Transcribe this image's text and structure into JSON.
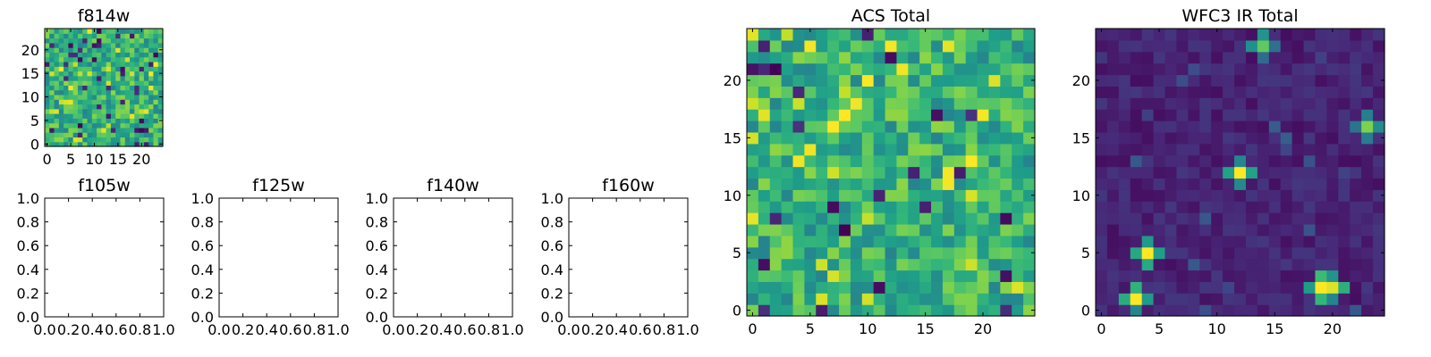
{
  "figure": {
    "panels": [
      {
        "id": "f814w",
        "title": "f814w"
      },
      {
        "id": "f105w",
        "title": "f105w"
      },
      {
        "id": "f125w",
        "title": "f125w"
      },
      {
        "id": "f140w",
        "title": "f140w"
      },
      {
        "id": "f160w",
        "title": "f160w"
      },
      {
        "id": "acs",
        "title": "ACS Total"
      },
      {
        "id": "wfc3",
        "title": "WFC3 IR Total"
      }
    ]
  },
  "chart_data": [
    {
      "type": "heatmap",
      "title": "f814w",
      "colormap": "viridis",
      "grid_size": [
        25,
        25
      ],
      "xlim": [
        -0.5,
        24.5
      ],
      "ylim": [
        -0.5,
        24.5
      ],
      "xticks": [
        0,
        5,
        10,
        15,
        20
      ],
      "yticks": [
        0,
        5,
        10,
        15,
        20
      ],
      "features": [
        {
          "x": 7,
          "y": 15,
          "value": 0.9,
          "note": "bright blob"
        }
      ]
    },
    {
      "type": "empty",
      "title": "f105w",
      "xlim": [
        0,
        1
      ],
      "ylim": [
        0,
        1
      ],
      "xticks": [
        "0.0",
        "0.2",
        "0.4",
        "0.6",
        "0.8",
        "1.0"
      ],
      "yticks": [
        "0.0",
        "0.2",
        "0.4",
        "0.6",
        "0.8",
        "1.0"
      ]
    },
    {
      "type": "empty",
      "title": "f125w",
      "xlim": [
        0,
        1
      ],
      "ylim": [
        0,
        1
      ],
      "xticks": [
        "0.0",
        "0.2",
        "0.4",
        "0.6",
        "0.8",
        "1.0"
      ],
      "yticks": [
        "0.0",
        "0.2",
        "0.4",
        "0.6",
        "0.8",
        "1.0"
      ]
    },
    {
      "type": "empty",
      "title": "f140w",
      "xlim": [
        0,
        1
      ],
      "ylim": [
        0,
        1
      ],
      "xticks": [
        "0.0",
        "0.2",
        "0.4",
        "0.6",
        "0.8",
        "1.0"
      ],
      "yticks": [
        "0.0",
        "0.2",
        "0.4",
        "0.6",
        "0.8",
        "1.0"
      ]
    },
    {
      "type": "empty",
      "title": "f160w",
      "xlim": [
        0,
        1
      ],
      "ylim": [
        0,
        1
      ],
      "xticks": [
        "0.0",
        "0.2",
        "0.4",
        "0.6",
        "0.8",
        "1.0"
      ],
      "yticks": [
        "0.0",
        "0.2",
        "0.4",
        "0.6",
        "0.8",
        "1.0"
      ]
    },
    {
      "type": "heatmap",
      "title": "ACS Total",
      "colormap": "viridis",
      "grid_size": [
        25,
        25
      ],
      "xlim": [
        -0.5,
        24.5
      ],
      "ylim": [
        -0.5,
        24.5
      ],
      "xticks": [
        0,
        5,
        10,
        15,
        20
      ],
      "yticks": [
        0,
        5,
        10,
        15,
        20
      ],
      "features": [
        {
          "x": 7,
          "y": 16,
          "value": 1.0,
          "note": "bright blob"
        },
        {
          "x": 8,
          "y": 17,
          "value": 1.0
        },
        {
          "x": 9,
          "y": 18,
          "value": 0.98
        }
      ]
    },
    {
      "type": "heatmap",
      "title": "WFC3 IR Total",
      "colormap": "viridis",
      "grid_size": [
        25,
        25
      ],
      "xlim": [
        -0.5,
        24.5
      ],
      "ylim": [
        -0.5,
        24.5
      ],
      "xticks": [
        0,
        5,
        10,
        15,
        20
      ],
      "yticks": [
        0,
        5,
        10,
        15,
        20
      ],
      "features": [
        {
          "x": 14,
          "y": 23,
          "value": 0.75
        },
        {
          "x": 23,
          "y": 16,
          "value": 0.8
        },
        {
          "x": 12,
          "y": 12,
          "value": 1.0
        },
        {
          "x": 4,
          "y": 5,
          "value": 1.0
        },
        {
          "x": 3,
          "y": 1,
          "value": 1.0
        },
        {
          "x": 19,
          "y": 2,
          "value": 1.0
        },
        {
          "x": 20,
          "y": 2,
          "value": 0.95
        }
      ]
    }
  ]
}
